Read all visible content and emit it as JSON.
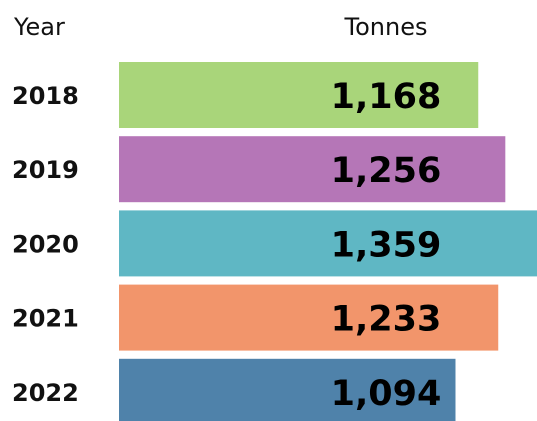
{
  "chart_data": {
    "type": "bar",
    "orientation": "horizontal",
    "category_header": "Year",
    "value_header": "Tonnes",
    "categories": [
      "2018",
      "2019",
      "2020",
      "2021",
      "2022"
    ],
    "values": [
      1168,
      1256,
      1359,
      1233,
      1094
    ],
    "value_labels": [
      "1,168",
      "1,256",
      "1,359",
      "1,233",
      "1,094"
    ],
    "colors": [
      "#a9d57a",
      "#b576b7",
      "#5fb7c4",
      "#f2956b",
      "#4f82aa"
    ]
  }
}
